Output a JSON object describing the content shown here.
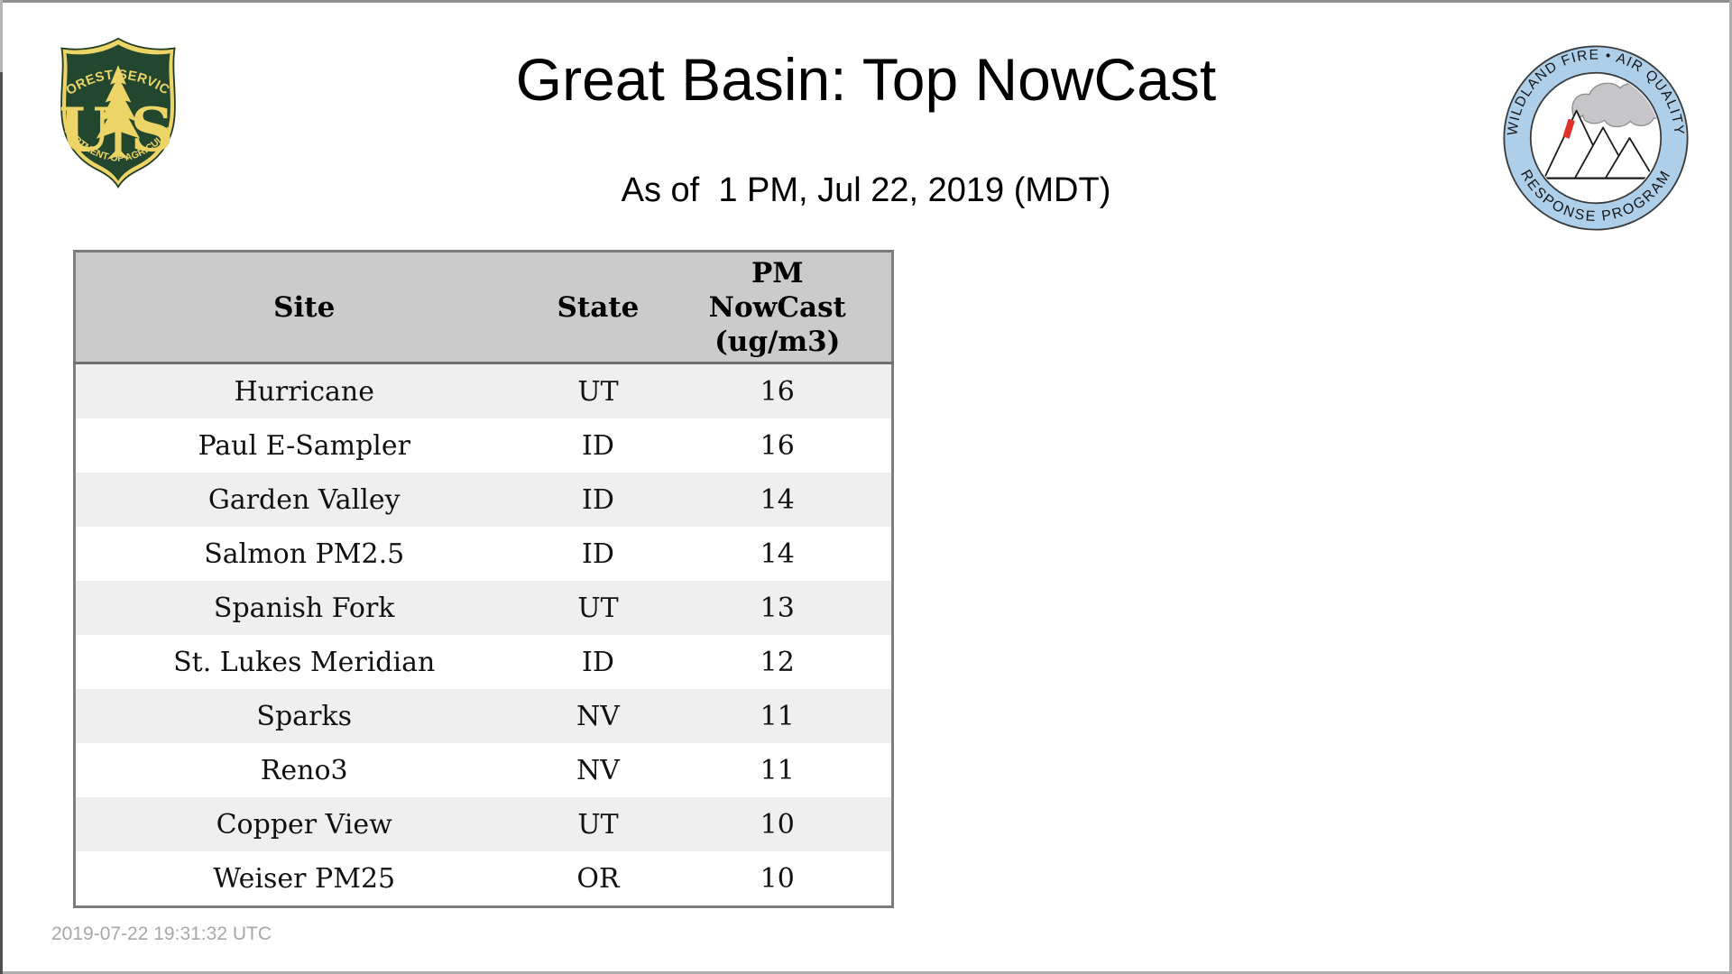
{
  "header": {
    "title": "Great Basin: Top NowCast",
    "subtitle": "As of  1 PM, Jul 22, 2019 (MDT)"
  },
  "logos": {
    "forest_service": {
      "arc_top": "FOREST SERVICE",
      "monogram_left": "U",
      "monogram_right": "S",
      "arc_bottom": "DEPARTMENT OF AGRICULTURE"
    },
    "air_quality_badge": {
      "arc_top": "WILDLAND FIRE • AIR QUALITY",
      "arc_bottom": "RESPONSE PROGRAM"
    }
  },
  "table": {
    "col_site": "Site",
    "col_state": "State",
    "col_value_lines": [
      "PM",
      "NowCast",
      "(ug/m3)"
    ],
    "rows": [
      {
        "site": "Hurricane",
        "state": "UT",
        "value": 16
      },
      {
        "site": "Paul E-Sampler",
        "state": "ID",
        "value": 16
      },
      {
        "site": "Garden Valley",
        "state": "ID",
        "value": 14
      },
      {
        "site": "Salmon PM2.5",
        "state": "ID",
        "value": 14
      },
      {
        "site": "Spanish Fork",
        "state": "UT",
        "value": 13
      },
      {
        "site": "St. Lukes Meridian",
        "state": "ID",
        "value": 12
      },
      {
        "site": "Sparks",
        "state": "NV",
        "value": 11
      },
      {
        "site": "Reno3",
        "state": "NV",
        "value": 11
      },
      {
        "site": "Copper View",
        "state": "UT",
        "value": 10
      },
      {
        "site": "Weiser PM25",
        "state": "OR",
        "value": 10
      }
    ]
  },
  "footer": {
    "generated_utc": "2019-07-22 19:31:32 UTC"
  },
  "colors": {
    "table_header_bg": "#cbcbcb",
    "table_stripe_bg": "#efefef",
    "table_border": "#7d7d7d",
    "fs_green": "#23472e",
    "fs_gold": "#ecd467",
    "badge_ring_blue": "#aecfea",
    "badge_smoke_gray": "#c6c6c8",
    "badge_flame_red": "#e23128",
    "footer_gray": "#a8a8a8"
  }
}
